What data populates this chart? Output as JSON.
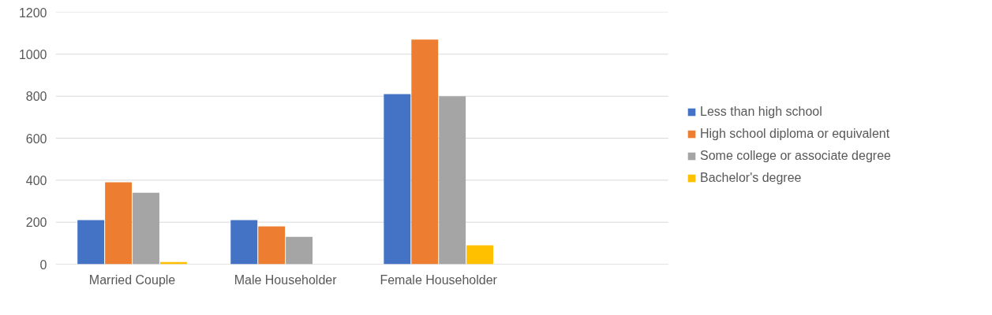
{
  "chart_data": {
    "type": "bar",
    "categories": [
      "Married Couple",
      "Male Householder",
      "Female Householder",
      null
    ],
    "series": [
      {
        "name": "Less than high school",
        "color": "#4472c4",
        "values": [
          210,
          210,
          810,
          null
        ]
      },
      {
        "name": "High school diploma or equivalent",
        "color": "#ed7d31",
        "values": [
          390,
          180,
          1070,
          null
        ]
      },
      {
        "name": "Some college or associate degree",
        "color": "#a5a5a5",
        "values": [
          340,
          130,
          800,
          null
        ]
      },
      {
        "name": "Bachelor's degree",
        "color": "#ffc000",
        "values": [
          10,
          0,
          90,
          null
        ]
      }
    ],
    "ylim": [
      0,
      1200
    ],
    "yticks": [
      0,
      200,
      400,
      600,
      800,
      1000,
      1200
    ],
    "grid": "y",
    "legend": "right"
  }
}
